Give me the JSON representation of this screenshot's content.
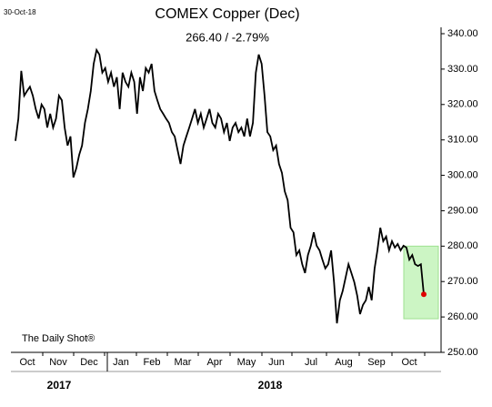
{
  "chart_data": {
    "type": "line",
    "date": "30-Oct-18",
    "title": "COMEX Copper (Dec)",
    "subtitle": "266.40  /  -2.79%",
    "source": "The Daily Shot®",
    "months": [
      "Oct",
      "Nov",
      "Dec",
      "Jan",
      "Feb",
      "Mar",
      "Apr",
      "May",
      "Jun",
      "Jul",
      "Aug",
      "Sep",
      "Oct"
    ],
    "years": [
      "2017",
      "2018"
    ],
    "color": "#000000",
    "end_color": "#e00000",
    "highlight_color": "#ccf5c4",
    "highlight_range": [
      259.5,
      280
    ],
    "values": [
      309.7,
      316,
      329.5,
      322.5,
      323.8,
      325,
      322.5,
      318.7,
      316,
      320,
      318.7,
      313.5,
      317.4,
      313.5,
      316,
      322.5,
      321.2,
      313.5,
      308.4,
      311,
      299.4,
      302,
      305.8,
      308.4,
      314.8,
      318.7,
      323.8,
      331.5,
      335.4,
      334.1,
      329,
      330.3,
      326.4,
      329,
      325,
      327.7,
      318.7,
      329,
      326.4,
      325,
      329,
      326.4,
      317.4,
      327.7,
      323.8,
      330.3,
      329,
      331.5,
      323.8,
      321.2,
      318.7,
      317.4,
      316,
      314.8,
      312.2,
      311,
      307.1,
      303.2,
      308.4,
      311,
      313.5,
      316,
      318.7,
      314.8,
      317.4,
      313.5,
      316,
      318.7,
      314.8,
      313.5,
      317.4,
      316,
      312.2,
      314.8,
      309.7,
      313.5,
      314.8,
      312.2,
      313.5,
      311,
      316,
      311,
      314.8,
      329,
      334.1,
      331.5,
      322.5,
      312.2,
      311,
      307.1,
      308.4,
      303.2,
      300.7,
      295.5,
      293,
      285.2,
      283.9,
      277.5,
      278.8,
      274.9,
      272.4,
      277.5,
      280.1,
      283.9,
      280.1,
      278.8,
      276.2,
      273.7,
      274.9,
      278.8,
      269.8,
      258.2,
      264.7,
      267.3,
      271.1,
      274.9,
      272.4,
      269.8,
      266,
      260.8,
      263.4,
      264.7,
      268.5,
      264.7,
      273.7,
      278.8,
      285.2,
      281.4,
      282.7,
      278.8,
      281.4,
      279.6,
      280.6,
      278.8,
      280.1,
      279.6,
      276.2,
      277.5,
      274.9,
      274.4,
      274.9,
      266.4
    ],
    "ylim": [
      250,
      340
    ],
    "yticks": [
      {
        "value": 250,
        "label": "250.00"
      },
      {
        "value": 260,
        "label": "260.00"
      },
      {
        "value": 270,
        "label": "270.00"
      },
      {
        "value": 280,
        "label": "280.00"
      },
      {
        "value": 290,
        "label": "290.00"
      },
      {
        "value": 300,
        "label": "300.00"
      },
      {
        "value": 310,
        "label": "310.00"
      },
      {
        "value": 320,
        "label": "320.00"
      },
      {
        "value": 330,
        "label": "330.00"
      },
      {
        "value": 340,
        "label": "340.00"
      }
    ]
  }
}
